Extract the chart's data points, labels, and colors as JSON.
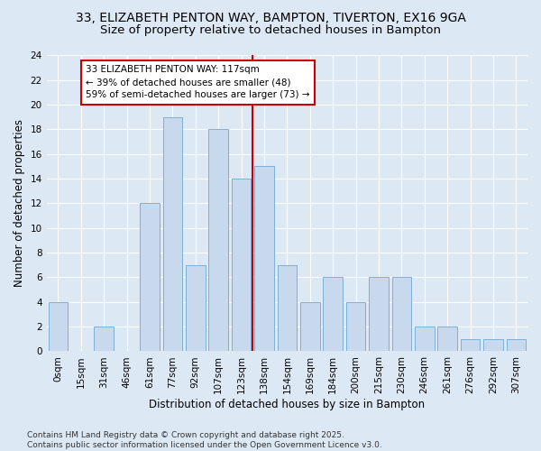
{
  "title_line1": "33, ELIZABETH PENTON WAY, BAMPTON, TIVERTON, EX16 9GA",
  "title_line2": "Size of property relative to detached houses in Bampton",
  "xlabel": "Distribution of detached houses by size in Bampton",
  "ylabel": "Number of detached properties",
  "bins": [
    "0sqm",
    "15sqm",
    "31sqm",
    "46sqm",
    "61sqm",
    "77sqm",
    "92sqm",
    "107sqm",
    "123sqm",
    "138sqm",
    "154sqm",
    "169sqm",
    "184sqm",
    "200sqm",
    "215sqm",
    "230sqm",
    "246sqm",
    "261sqm",
    "276sqm",
    "292sqm",
    "307sqm"
  ],
  "values": [
    4,
    0,
    2,
    0,
    12,
    19,
    7,
    18,
    14,
    15,
    7,
    4,
    6,
    4,
    6,
    6,
    2,
    2,
    1,
    1,
    1
  ],
  "bar_color": "#c8d9ee",
  "bar_edge_color": "#6fa8d0",
  "vline_x_index": 8.5,
  "vline_color": "#cc0000",
  "annotation_text": "33 ELIZABETH PENTON WAY: 117sqm\n← 39% of detached houses are smaller (48)\n59% of semi-detached houses are larger (73) →",
  "annotation_box_color": "#ffffff",
  "annotation_box_edge": "#cc0000",
  "ylim": [
    0,
    24
  ],
  "yticks": [
    0,
    2,
    4,
    6,
    8,
    10,
    12,
    14,
    16,
    18,
    20,
    22,
    24
  ],
  "background_color": "#dce9f5",
  "plot_bg_color": "#dce9f5",
  "footer": "Contains HM Land Registry data © Crown copyright and database right 2025.\nContains public sector information licensed under the Open Government Licence v3.0.",
  "title_fontsize": 10,
  "subtitle_fontsize": 9.5,
  "axis_label_fontsize": 8.5,
  "tick_fontsize": 7.5,
  "annotation_fontsize": 7.5,
  "footer_fontsize": 6.5
}
